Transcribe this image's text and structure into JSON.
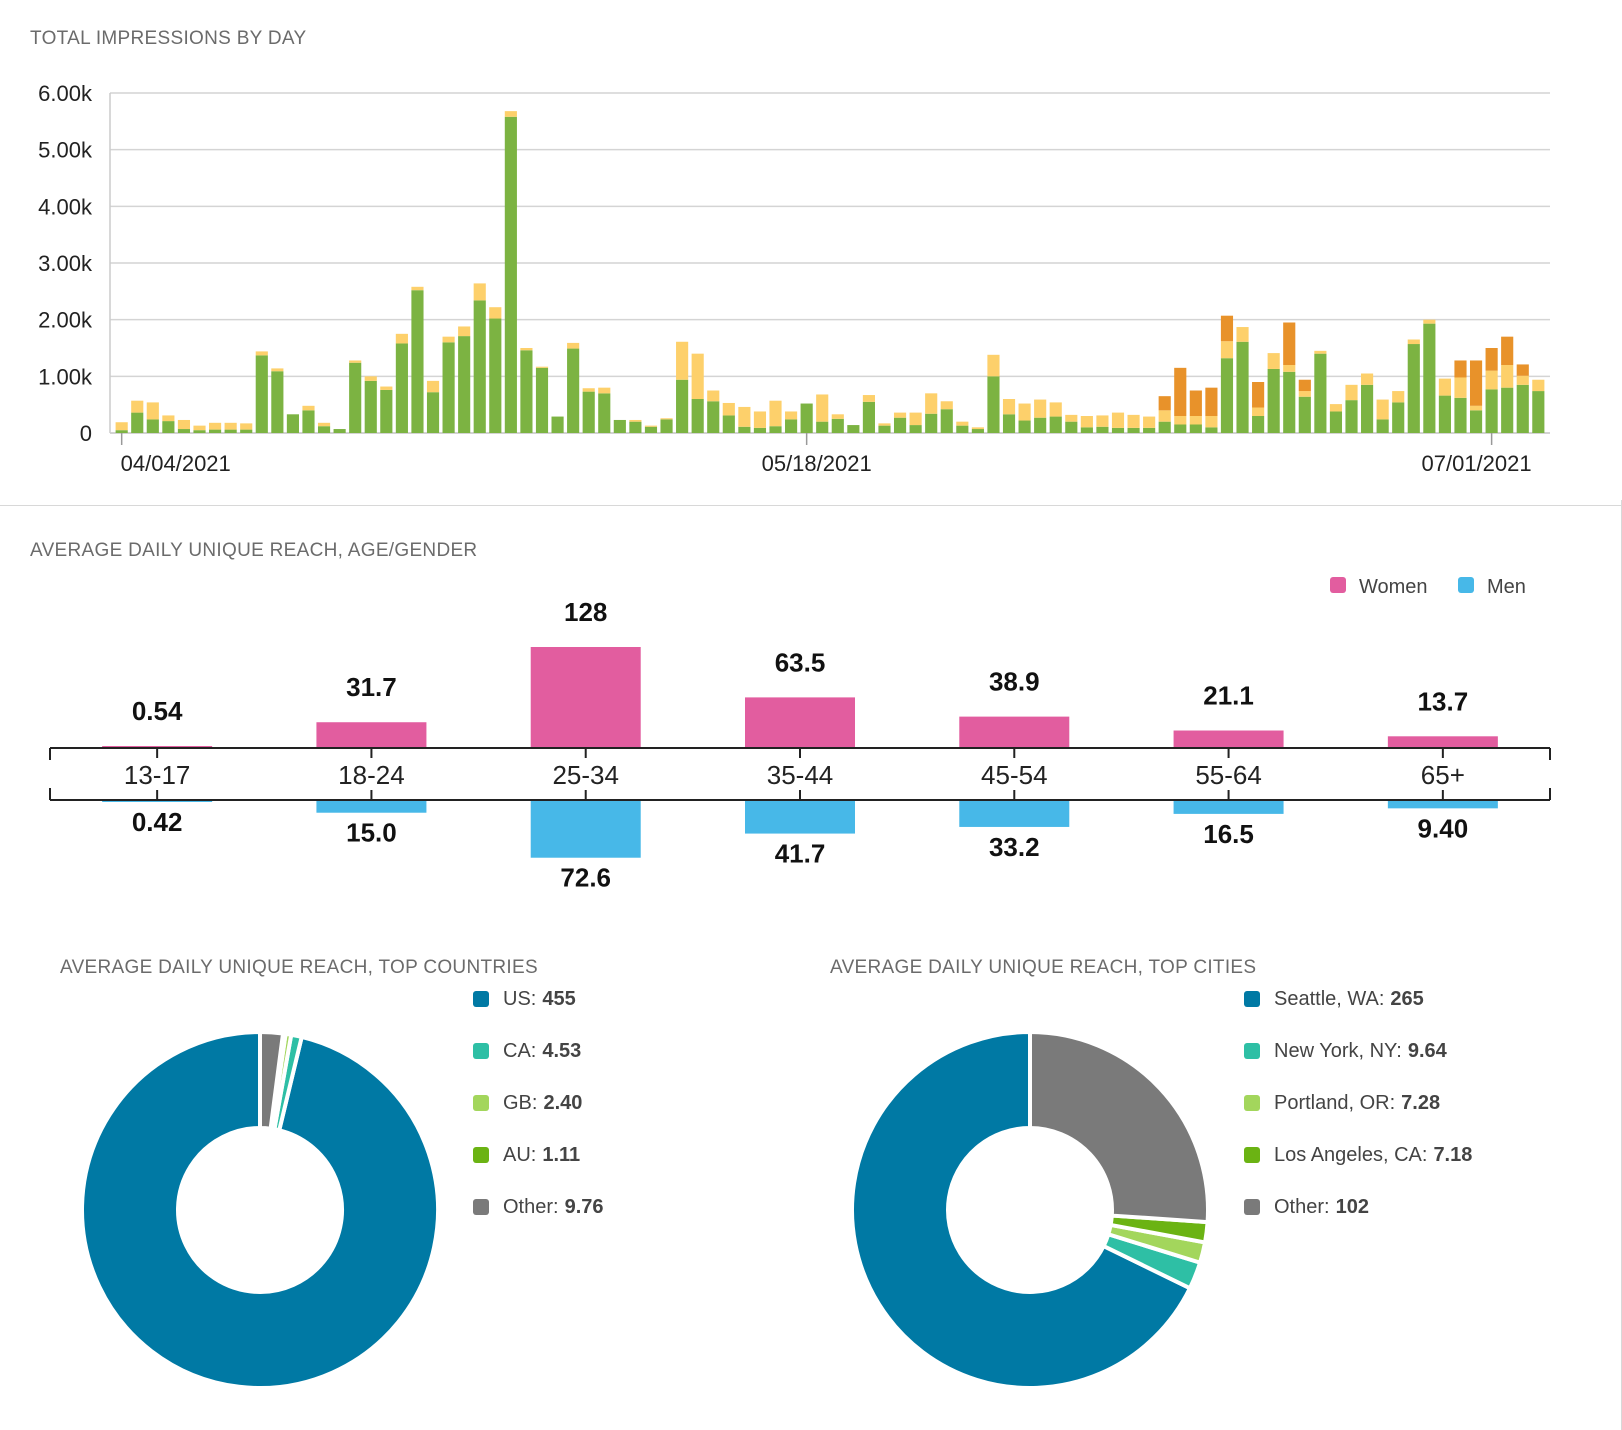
{
  "impressions": {
    "title": "TOTAL IMPRESSIONS BY DAY",
    "chart_data": {
      "type": "bar",
      "stacked": true,
      "y_ticks": [
        "0",
        "1.00k",
        "2.00k",
        "3.00k",
        "4.00k",
        "5.00k",
        "6.00k"
      ],
      "ylim": [
        0,
        6000
      ],
      "x_tick_labels": [
        "04/04/2021",
        "05/18/2021",
        "07/01/2021"
      ],
      "grid": true,
      "series": [
        {
          "color": "#7cb342",
          "values": [
            50,
            360,
            240,
            210,
            70,
            50,
            60,
            60,
            60,
            1370,
            1090,
            330,
            400,
            120,
            70,
            1240,
            920,
            760,
            1580,
            2520,
            720,
            1600,
            1710,
            2340,
            2020,
            5580,
            1460,
            1150,
            290,
            1490,
            730,
            700,
            230,
            200,
            110,
            240,
            940,
            600,
            560,
            310,
            110,
            90,
            120,
            240,
            520,
            200,
            250,
            140,
            550,
            130,
            270,
            140,
            340,
            420,
            130,
            70,
            1000,
            330,
            220,
            270,
            290,
            200,
            100,
            110,
            90,
            90,
            90,
            200,
            150,
            150,
            100,
            1320,
            1610,
            300,
            1130,
            1080,
            640,
            1400,
            380,
            580,
            850,
            240,
            540,
            1570,
            1930,
            660,
            620,
            400,
            770,
            800,
            850,
            740
          ]
        },
        {
          "color": "#fdd06b",
          "values": [
            140,
            210,
            300,
            100,
            160,
            80,
            120,
            120,
            110,
            70,
            50,
            0,
            80,
            60,
            0,
            40,
            80,
            60,
            170,
            60,
            200,
            100,
            170,
            300,
            200,
            100,
            40,
            20,
            0,
            100,
            60,
            100,
            0,
            30,
            20,
            20,
            670,
            800,
            190,
            220,
            350,
            290,
            450,
            140,
            0,
            480,
            80,
            0,
            120,
            40,
            90,
            220,
            360,
            140,
            70,
            30,
            380,
            270,
            300,
            320,
            250,
            120,
            200,
            200,
            270,
            230,
            200,
            200,
            150,
            150,
            200,
            300,
            260,
            150,
            280,
            120,
            100,
            50,
            130,
            270,
            200,
            350,
            200,
            80,
            70,
            300,
            360,
            80,
            330,
            400,
            160,
            200
          ]
        },
        {
          "color": "#e8922a",
          "values": [
            0,
            0,
            0,
            0,
            0,
            0,
            0,
            0,
            0,
            0,
            0,
            0,
            0,
            0,
            0,
            0,
            0,
            0,
            0,
            0,
            0,
            0,
            0,
            0,
            0,
            0,
            0,
            0,
            0,
            0,
            0,
            0,
            0,
            0,
            0,
            0,
            0,
            0,
            0,
            0,
            0,
            0,
            0,
            0,
            0,
            0,
            0,
            0,
            0,
            0,
            0,
            0,
            0,
            0,
            0,
            0,
            0,
            0,
            0,
            0,
            0,
            0,
            0,
            0,
            0,
            0,
            0,
            250,
            850,
            450,
            500,
            450,
            0,
            450,
            0,
            750,
            200,
            0,
            0,
            0,
            0,
            0,
            0,
            0,
            0,
            0,
            300,
            800,
            400,
            500,
            200,
            0
          ]
        }
      ]
    }
  },
  "age_gender": {
    "title": "AVERAGE DAILY UNIQUE REACH, AGE/GENDER",
    "chart_data": {
      "type": "bar",
      "categories": [
        "13-17",
        "18-24",
        "25-34",
        "35-44",
        "45-54",
        "55-64",
        "65+"
      ],
      "series": [
        {
          "name": "Women",
          "color": "#e25d9f",
          "values": [
            0.54,
            31.7,
            128,
            63.5,
            38.9,
            21.1,
            13.7
          ],
          "labels": [
            "0.54",
            "31.7",
            "128",
            "63.5",
            "38.9",
            "21.1",
            "13.7"
          ]
        },
        {
          "name": "Men",
          "color": "#47b8e8",
          "values": [
            0.42,
            15.0,
            72.6,
            41.7,
            33.2,
            16.5,
            9.4
          ],
          "labels": [
            "0.42",
            "15.0",
            "72.6",
            "41.7",
            "33.2",
            "16.5",
            "9.40"
          ]
        }
      ],
      "legend_position": "top-right"
    }
  },
  "countries": {
    "title": "AVERAGE DAILY UNIQUE REACH, TOP COUNTRIES",
    "chart_data": {
      "type": "pie",
      "donut": true,
      "slices": [
        {
          "label": "US",
          "value": 455,
          "display": "455",
          "color": "#0079a4"
        },
        {
          "label": "CA",
          "value": 4.53,
          "display": "4.53",
          "color": "#2ebfa5"
        },
        {
          "label": "GB",
          "value": 2.4,
          "display": "2.40",
          "color": "#a3d65c"
        },
        {
          "label": "AU",
          "value": 1.11,
          "display": "1.11",
          "color": "#6bb313"
        },
        {
          "label": "Other",
          "value": 9.76,
          "display": "9.76",
          "color": "#7a7a7a"
        }
      ]
    }
  },
  "cities": {
    "title": "AVERAGE DAILY UNIQUE REACH, TOP CITIES",
    "chart_data": {
      "type": "pie",
      "donut": true,
      "slices": [
        {
          "label": "Seattle, WA",
          "value": 265,
          "display": "265",
          "color": "#0079a4"
        },
        {
          "label": "New York, NY",
          "value": 9.64,
          "display": "9.64",
          "color": "#2ebfa5"
        },
        {
          "label": "Portland, OR",
          "value": 7.28,
          "display": "7.28",
          "color": "#a3d65c"
        },
        {
          "label": "Los Angeles, CA",
          "value": 7.18,
          "display": "7.18",
          "color": "#6bb313"
        },
        {
          "label": "Other",
          "value": 102,
          "display": "102",
          "color": "#7a7a7a"
        }
      ]
    }
  }
}
